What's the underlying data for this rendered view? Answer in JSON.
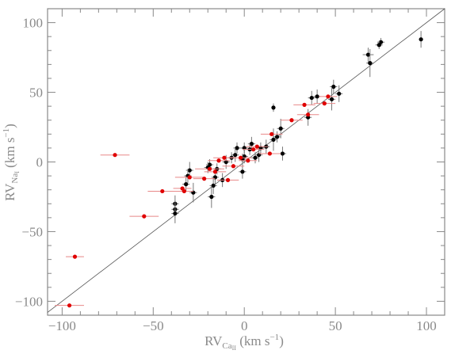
{
  "chart_data": {
    "type": "scatter",
    "xlabel": {
      "prefix": "RV",
      "sub": "Ca",
      "subsub": "II",
      "unit": " (km s",
      "sup": "−1",
      "end": ")"
    },
    "ylabel": {
      "prefix": "RV",
      "sub": "Na",
      "subsub": "I",
      "unit": " (km s",
      "sup": "−1",
      "end": ")"
    },
    "xlim": [
      -108,
      110
    ],
    "ylim": [
      -110,
      110
    ],
    "xticks": [
      -100,
      -50,
      0,
      50,
      100
    ],
    "yticks": [
      -100,
      -50,
      0,
      50,
      100
    ],
    "xtick_labels": [
      "−100",
      "−50",
      "0",
      "50",
      "100"
    ],
    "ytick_labels": [
      "−100",
      "−50",
      "0",
      "50",
      "100"
    ],
    "grid": false,
    "reference_line": {
      "type": "one-to-one",
      "x": [
        -108,
        110
      ],
      "y": [
        -108,
        110
      ]
    },
    "colors": {
      "black_series": "#000000",
      "red_series": "#e00000",
      "axis": "#888888",
      "line": "#555555"
    },
    "series": [
      {
        "color": "#000000",
        "points": [
          {
            "x": 97,
            "y": 88,
            "xerr": 1,
            "yerr": 6
          },
          {
            "x": 75,
            "y": 86,
            "xerr": 2,
            "yerr": 3
          },
          {
            "x": 74,
            "y": 84,
            "xerr": 2,
            "yerr": 3
          },
          {
            "x": 68,
            "y": 77,
            "xerr": 3,
            "yerr": 5
          },
          {
            "x": 69,
            "y": 71,
            "xerr": 2,
            "yerr": 10
          },
          {
            "x": 52,
            "y": 49,
            "xerr": 2,
            "yerr": 6
          },
          {
            "x": 49,
            "y": 54,
            "xerr": 2,
            "yerr": 5
          },
          {
            "x": 48,
            "y": 45,
            "xerr": 2,
            "yerr": 8
          },
          {
            "x": 40,
            "y": 47,
            "xerr": 2,
            "yerr": 5
          },
          {
            "x": 37,
            "y": 46,
            "xerr": 2,
            "yerr": 5
          },
          {
            "x": 35,
            "y": 32,
            "xerr": 2,
            "yerr": 6
          },
          {
            "x": 16,
            "y": 39,
            "xerr": 1,
            "yerr": 3
          },
          {
            "x": 20,
            "y": 24,
            "xerr": 2,
            "yerr": 7
          },
          {
            "x": 18,
            "y": 18,
            "xerr": 2,
            "yerr": 4
          },
          {
            "x": 16,
            "y": 16,
            "xerr": 2,
            "yerr": 8
          },
          {
            "x": 21,
            "y": 6,
            "xerr": 2,
            "yerr": 5
          },
          {
            "x": 12,
            "y": 11,
            "xerr": 2,
            "yerr": 5
          },
          {
            "x": 9,
            "y": 10,
            "xerr": 2,
            "yerr": 4
          },
          {
            "x": 8,
            "y": 5,
            "xerr": 2,
            "yerr": 5
          },
          {
            "x": 6,
            "y": 3,
            "xerr": 2,
            "yerr": 4
          },
          {
            "x": 4,
            "y": 13,
            "xerr": 2,
            "yerr": 5
          },
          {
            "x": 3,
            "y": 9,
            "xerr": 2,
            "yerr": 4
          },
          {
            "x": 0,
            "y": 10,
            "xerr": 2,
            "yerr": 4
          },
          {
            "x": 0,
            "y": 4,
            "xerr": 2,
            "yerr": 5
          },
          {
            "x": -1,
            "y": 2,
            "xerr": 2,
            "yerr": 4
          },
          {
            "x": -1,
            "y": -7,
            "xerr": 2,
            "yerr": 5
          },
          {
            "x": -4,
            "y": 10,
            "xerr": 2,
            "yerr": 4
          },
          {
            "x": -5,
            "y": 5,
            "xerr": 2,
            "yerr": 5
          },
          {
            "x": -7,
            "y": 3,
            "xerr": 2,
            "yerr": 4
          },
          {
            "x": -10,
            "y": 0,
            "xerr": 2,
            "yerr": 5
          },
          {
            "x": -12,
            "y": -13,
            "xerr": 2,
            "yerr": 5
          },
          {
            "x": -15,
            "y": -5,
            "xerr": 2,
            "yerr": 4
          },
          {
            "x": -16,
            "y": -11,
            "xerr": 2,
            "yerr": 5
          },
          {
            "x": -17,
            "y": -17,
            "xerr": 2,
            "yerr": 6
          },
          {
            "x": -18,
            "y": -25,
            "xerr": 2,
            "yerr": 8
          },
          {
            "x": -19,
            "y": -2,
            "xerr": 2,
            "yerr": 4
          },
          {
            "x": -20,
            "y": -4,
            "xerr": 2,
            "yerr": 4
          },
          {
            "x": -28,
            "y": -22,
            "xerr": 2,
            "yerr": 7
          },
          {
            "x": -30,
            "y": -6,
            "xerr": 2,
            "yerr": 6
          },
          {
            "x": -31,
            "y": -10,
            "xerr": 2,
            "yerr": 5
          },
          {
            "x": -32,
            "y": -16,
            "xerr": 2,
            "yerr": 5
          },
          {
            "x": -38,
            "y": -30,
            "xerr": 2,
            "yerr": 6
          },
          {
            "x": -38,
            "y": -34,
            "xerr": 2,
            "yerr": 6
          },
          {
            "x": -38,
            "y": -37,
            "xerr": 2,
            "yerr": 7
          }
        ]
      },
      {
        "color": "#e00000",
        "points": [
          {
            "x": -96,
            "y": -103,
            "xerr": 8,
            "yerr": 0
          },
          {
            "x": -93,
            "y": -68,
            "xerr": 5,
            "yerr": 0
          },
          {
            "x": -71,
            "y": 5,
            "xerr": 8,
            "yerr": 0
          },
          {
            "x": -55,
            "y": -39,
            "xerr": 8,
            "yerr": 0
          },
          {
            "x": -45,
            "y": -21,
            "xerr": 8,
            "yerr": 0
          },
          {
            "x": -34,
            "y": -19,
            "xerr": 5,
            "yerr": 0
          },
          {
            "x": -33,
            "y": -21,
            "xerr": 5,
            "yerr": 0
          },
          {
            "x": -30,
            "y": -11,
            "xerr": 8,
            "yerr": 0
          },
          {
            "x": -22,
            "y": -12,
            "xerr": 6,
            "yerr": 0
          },
          {
            "x": -19,
            "y": -5,
            "xerr": 8,
            "yerr": 0
          },
          {
            "x": -16,
            "y": -7,
            "xerr": 6,
            "yerr": 0
          },
          {
            "x": -14,
            "y": 1,
            "xerr": 6,
            "yerr": 0
          },
          {
            "x": -11,
            "y": 3,
            "xerr": 6,
            "yerr": 0
          },
          {
            "x": -9,
            "y": -13,
            "xerr": 6,
            "yerr": 0
          },
          {
            "x": -6,
            "y": -3,
            "xerr": 6,
            "yerr": 0
          },
          {
            "x": -2,
            "y": 3,
            "xerr": 6,
            "yerr": 0
          },
          {
            "x": 2,
            "y": 1,
            "xerr": 5,
            "yerr": 0
          },
          {
            "x": 5,
            "y": 9,
            "xerr": 6,
            "yerr": 0
          },
          {
            "x": 7,
            "y": 11,
            "xerr": 6,
            "yerr": 0
          },
          {
            "x": 14,
            "y": 6,
            "xerr": 6,
            "yerr": 0
          },
          {
            "x": 15,
            "y": 20,
            "xerr": 6,
            "yerr": 0
          },
          {
            "x": 26,
            "y": 30,
            "xerr": 6,
            "yerr": 0
          },
          {
            "x": 33,
            "y": 41,
            "xerr": 6,
            "yerr": 0
          },
          {
            "x": 35,
            "y": 34,
            "xerr": 6,
            "yerr": 0
          },
          {
            "x": 44,
            "y": 42,
            "xerr": 6,
            "yerr": 0
          },
          {
            "x": 46,
            "y": 47,
            "xerr": 5,
            "yerr": 0
          }
        ]
      }
    ]
  }
}
